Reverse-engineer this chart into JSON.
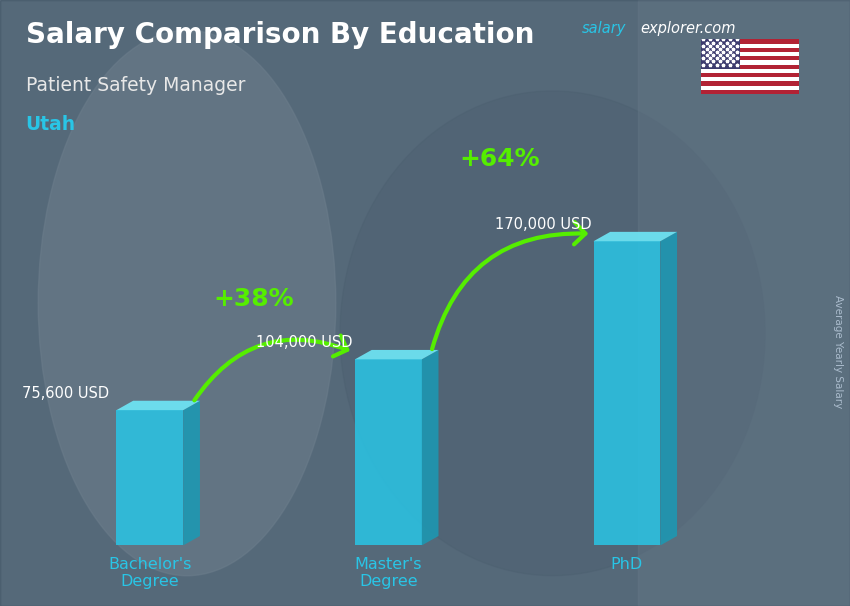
{
  "title": "Salary Comparison By Education",
  "subtitle": "Patient Safety Manager",
  "location": "Utah",
  "watermark_salary": "salary",
  "watermark_explorer": "explorer",
  "watermark_com": ".com",
  "ylabel": "Average Yearly Salary",
  "categories": [
    "Bachelor's\nDegree",
    "Master's\nDegree",
    "PhD"
  ],
  "values": [
    75600,
    104000,
    170000
  ],
  "value_labels": [
    "75,600 USD",
    "104,000 USD",
    "170,000 USD"
  ],
  "pct_labels": [
    "+38%",
    "+64%"
  ],
  "bar_color_front": "#29c5e6",
  "bar_color_top": "#6ee8f8",
  "bar_color_side": "#1a9ab5",
  "bg_color": "#6a7e8e",
  "overlay_color": "#3a4f60",
  "title_color": "#ffffff",
  "subtitle_color": "#e8e8e8",
  "location_color": "#29c5e6",
  "value_label_color": "#ffffff",
  "pct_color": "#7fff00",
  "arrow_color": "#55ee00",
  "watermark_color1": "#29c5e6",
  "watermark_color2": "#ffffff",
  "xticklabel_color": "#29c5e6",
  "bar_width": 0.28,
  "bar_positions": [
    0,
    1,
    2
  ],
  "xlim": [
    -0.45,
    2.65
  ],
  "ylim": [
    0,
    210000
  ],
  "figsize": [
    8.5,
    6.06
  ],
  "dpi": 100
}
